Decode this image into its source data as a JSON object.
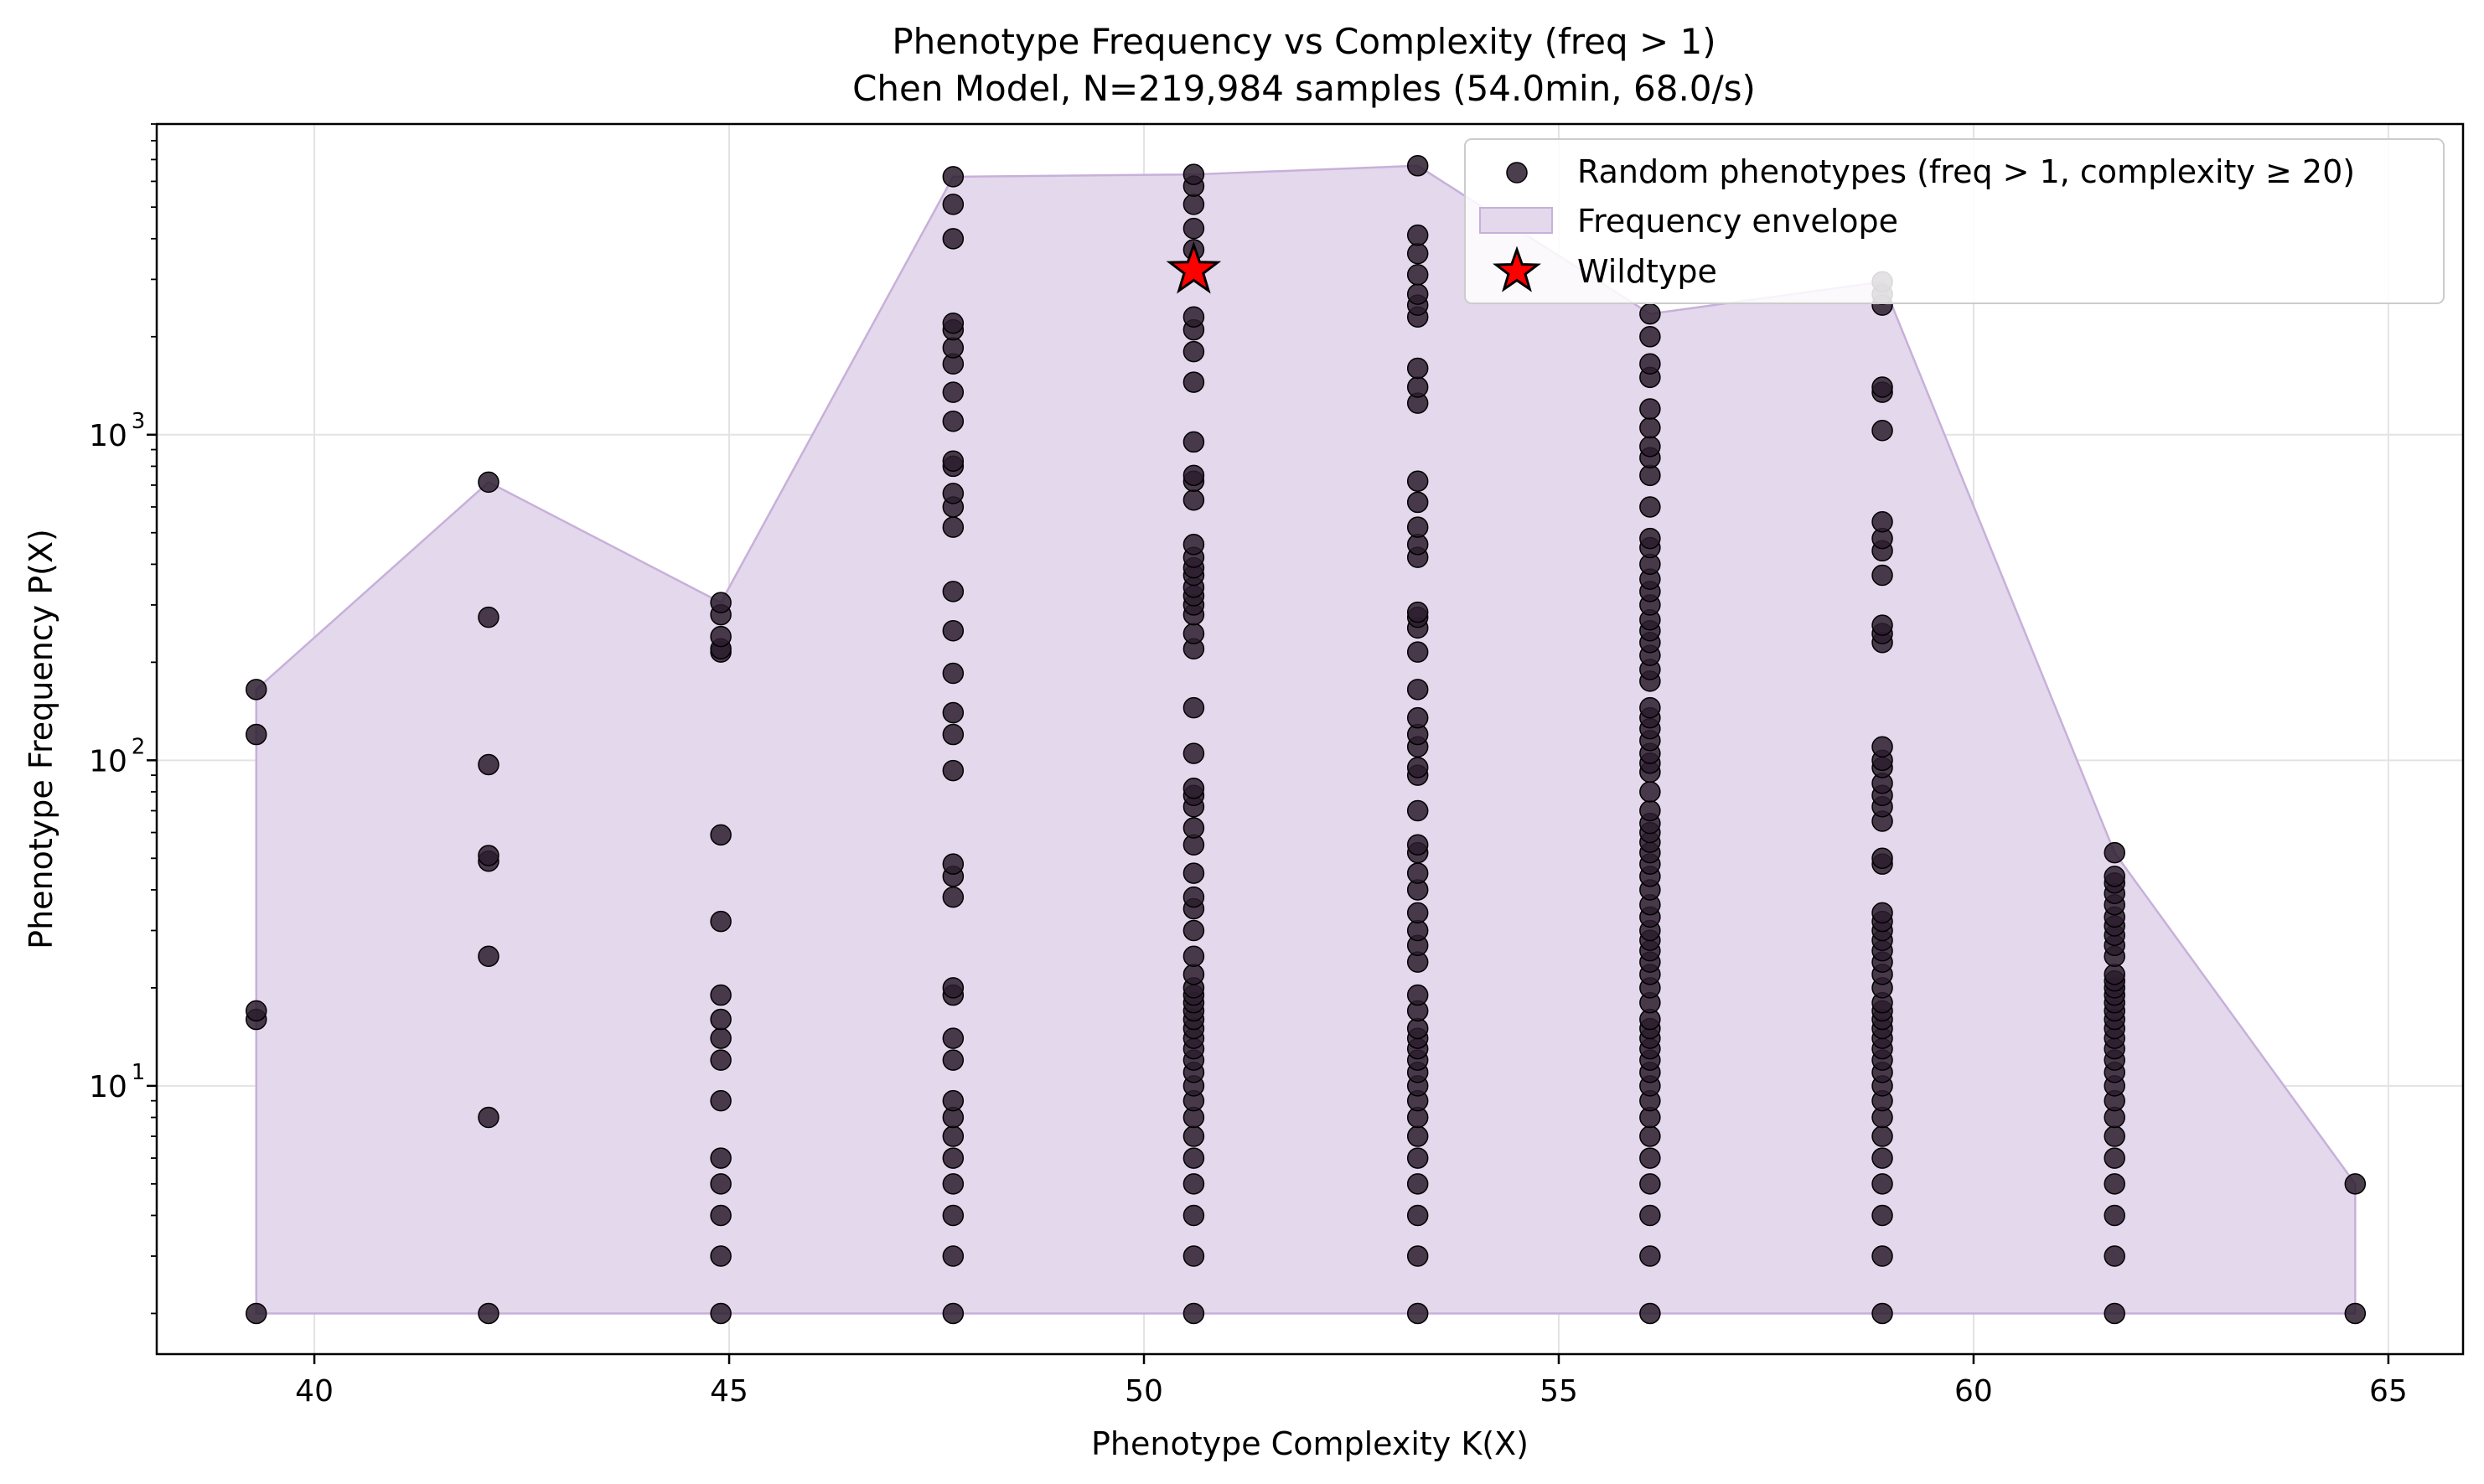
{
  "chart_data": {
    "type": "scatter",
    "title": "Phenotype Frequency vs Complexity (freq > 1)",
    "subtitle": "Chen Model, N=219,984 samples (54.0min, 68.0/s)",
    "xlabel": "Phenotype Complexity K(X)",
    "ylabel": "Phenotype Frequency P(X)",
    "xlim": [
      38.1,
      65.9
    ],
    "ylim": [
      1.5,
      9000
    ],
    "yscale": "log",
    "grid": true,
    "legend_position": "top-right",
    "x_ticks": [
      40,
      45,
      50,
      55,
      60,
      65
    ],
    "y_ticks": [
      {
        "value": 10,
        "base": "10",
        "exp": "1"
      },
      {
        "value": 100,
        "base": "10",
        "exp": "2"
      },
      {
        "value": 1000,
        "base": "10",
        "exp": "3"
      }
    ],
    "colors": {
      "points": "#2b1d2e",
      "envelope_fill": "#e4d8ec",
      "envelope_stroke": "#c7b0da",
      "wildtype": "#ff0000"
    },
    "envelope": {
      "name": "Frequency envelope",
      "x": [
        39.3,
        42.1,
        44.9,
        47.7,
        50.6,
        53.3,
        56.1,
        58.9,
        61.7,
        64.6
      ],
      "upper": [
        165,
        715,
        305,
        6200,
        6300,
        6700,
        2350,
        2950,
        52,
        5
      ],
      "lower": 2
    },
    "series": [
      {
        "name": "Random phenotypes (freq > 1, complexity ≥ 20)",
        "points": [
          {
            "x": 39.3,
            "y": [
              2,
              16,
              17,
              120,
              165
            ]
          },
          {
            "x": 42.1,
            "y": [
              2,
              8,
              25,
              49,
              51,
              97,
              275,
              715
            ]
          },
          {
            "x": 44.9,
            "y": [
              2,
              3,
              4,
              5,
              6,
              9,
              12,
              14,
              16,
              19,
              32,
              59,
              215,
              220,
              240,
              280,
              305
            ]
          },
          {
            "x": 47.7,
            "y": [
              2,
              3,
              4,
              5,
              6,
              7,
              8,
              9,
              12,
              14,
              19,
              20,
              38,
              44,
              48,
              93,
              120,
              140,
              185,
              250,
              330,
              520,
              600,
              660,
              800,
              830,
              1100,
              1350,
              1650,
              1850,
              2100,
              2200,
              4000,
              5100,
              6200
            ]
          },
          {
            "x": 50.6,
            "y": [
              2,
              3,
              4,
              5,
              6,
              7,
              8,
              9,
              10,
              11,
              12,
              13,
              14,
              15,
              16,
              17,
              18,
              19,
              20,
              22,
              25,
              30,
              35,
              38,
              45,
              55,
              62,
              72,
              78,
              82,
              105,
              145,
              220,
              245,
              280,
              300,
              320,
              340,
              370,
              390,
              420,
              460,
              630,
              720,
              750,
              950,
              1450,
              1800,
              2100,
              2300,
              3700,
              4300,
              5100,
              5800,
              6300
            ]
          },
          {
            "x": 53.3,
            "y": [
              2,
              3,
              4,
              5,
              6,
              7,
              8,
              9,
              10,
              11,
              12,
              13,
              14,
              15,
              17,
              19,
              24,
              27,
              30,
              34,
              40,
              45,
              52,
              55,
              70,
              90,
              95,
              110,
              120,
              135,
              165,
              215,
              255,
              275,
              285,
              420,
              460,
              520,
              620,
              720,
              1250,
              1400,
              1600,
              2300,
              2500,
              2700,
              3100,
              3600,
              4100,
              6700
            ]
          },
          {
            "x": 56.1,
            "y": [
              2,
              3,
              4,
              5,
              6,
              7,
              8,
              9,
              10,
              11,
              12,
              13,
              14,
              15,
              16,
              18,
              20,
              22,
              24,
              26,
              28,
              30,
              33,
              36,
              40,
              44,
              48,
              52,
              56,
              60,
              64,
              70,
              80,
              92,
              98,
              105,
              115,
              125,
              135,
              145,
              175,
              190,
              210,
              230,
              250,
              270,
              300,
              330,
              360,
              400,
              450,
              480,
              600,
              750,
              850,
              920,
              1050,
              1200,
              1500,
              1650,
              2000,
              2350
            ]
          },
          {
            "x": 58.9,
            "y": [
              2,
              3,
              4,
              5,
              6,
              7,
              8,
              9,
              10,
              11,
              12,
              13,
              14,
              15,
              16,
              17,
              18,
              20,
              22,
              24,
              26,
              28,
              30,
              32,
              34,
              48,
              50,
              65,
              72,
              78,
              85,
              95,
              100,
              110,
              230,
              245,
              260,
              370,
              440,
              480,
              540,
              1030,
              1350,
              1400,
              2500,
              2700,
              2950
            ]
          },
          {
            "x": 61.7,
            "y": [
              2,
              3,
              4,
              5,
              6,
              7,
              8,
              9,
              10,
              11,
              12,
              13,
              14,
              15,
              16,
              17,
              18,
              19,
              20,
              21,
              22,
              25,
              27,
              29,
              31,
              33,
              36,
              39,
              42,
              44,
              52
            ]
          },
          {
            "x": 64.6,
            "y": [
              2,
              5
            ]
          }
        ]
      },
      {
        "name": "Wildtype",
        "points": [
          {
            "x": 50.6,
            "y": [
              3200
            ]
          }
        ]
      }
    ]
  }
}
